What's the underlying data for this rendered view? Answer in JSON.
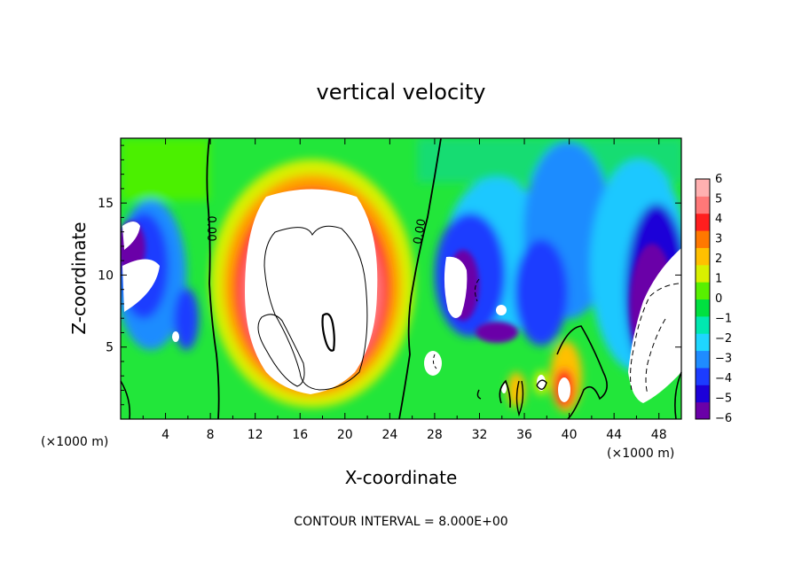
{
  "chart_data": {
    "type": "heatmap",
    "title": "vertical velocity",
    "xlabel": "X-coordinate",
    "ylabel": "Z-coordinate",
    "x_unit": "(×1000 m)",
    "x_unit_right": "(×1000 m)",
    "xlim": [
      0,
      50
    ],
    "ylim": [
      0,
      19.5
    ],
    "x_ticks": [
      4,
      8,
      12,
      16,
      20,
      24,
      28,
      32,
      36,
      40,
      44,
      48
    ],
    "y_ticks": [
      5,
      10,
      15
    ],
    "colorbar": {
      "levels": [
        -6,
        -5,
        -4,
        -3,
        -2,
        -1,
        0,
        1,
        2,
        3,
        4,
        5,
        6
      ],
      "labels": [
        "6",
        "5",
        "4",
        "3",
        "2",
        "1",
        "0",
        "−1",
        "−2",
        "−3",
        "−4",
        "−5",
        "−6"
      ],
      "colors": [
        "#6a00a8",
        "#1c00d8",
        "#1c3cff",
        "#1f8cff",
        "#1fd6ff",
        "#00e8b0",
        "#00e040",
        "#58f000",
        "#d8f000",
        "#ffc000",
        "#ff7800",
        "#ff1e1e",
        "#ff7878",
        "#ffb0b0"
      ]
    },
    "contour_labels": [
      "0.00",
      "0.00"
    ],
    "footer": "CONTOUR INTERVAL = 8.000E+00",
    "features": [
      {
        "kind": "updraft",
        "x_center": 18,
        "z_center": 10,
        "x_halfwidth": 4.6,
        "z_halfwidth": 6,
        "peak": "> 6"
      },
      {
        "kind": "updraft",
        "x_center": 39.8,
        "z_center": 2,
        "peak": "> 6"
      },
      {
        "kind": "downdraft",
        "x_center": 47,
        "z_center": 7.5,
        "peak": "< -6"
      },
      {
        "kind": "downdraft",
        "x_center": 30.5,
        "z_center": 9.5,
        "peak": "< -6"
      },
      {
        "kind": "downdraft",
        "x_center": 1,
        "z_center": 9,
        "peak": "< -6"
      }
    ]
  }
}
